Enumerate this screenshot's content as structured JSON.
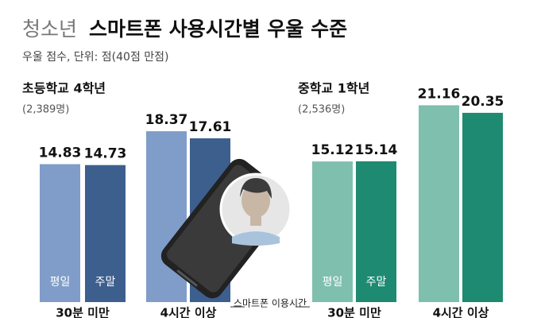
{
  "header": {
    "title_light": "청소년",
    "title": "스마트폰 사용시간별 우울 수준",
    "subtitle": "우울 점수, 단위: 점(40점 만점)",
    "x_label": "스마트폰 이용시간"
  },
  "chart_data": [
    {
      "type": "bar",
      "title": "초등학교 4학년",
      "subtitle": "(2,389명)",
      "categories": [
        "30분 미만",
        "4시간 이상"
      ],
      "series": [
        {
          "name": "평일",
          "color": "#7f9dc8",
          "values": [
            14.83,
            18.37
          ]
        },
        {
          "name": "주말",
          "color": "#3d5f8e",
          "values": [
            14.73,
            17.61
          ]
        }
      ]
    },
    {
      "type": "bar",
      "title": "중학교 1학년",
      "subtitle": "(2,536명)",
      "categories": [
        "30분 미만",
        "4시간 이상"
      ],
      "series": [
        {
          "name": "평일",
          "color": "#7fbfad",
          "values": [
            15.12,
            21.16
          ]
        },
        {
          "name": "주말",
          "color": "#1e8a72",
          "values": [
            15.14,
            20.35
          ]
        }
      ]
    }
  ]
}
